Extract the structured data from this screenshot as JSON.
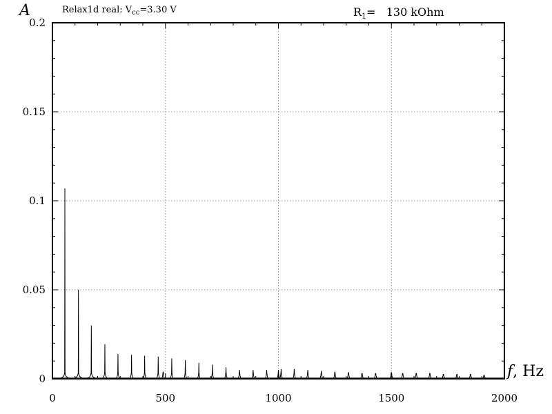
{
  "chart_data": {
    "type": "line",
    "title_left": {
      "prefix": "Relax1d real: V",
      "sub": "cc",
      "suffix": "=3.30 V"
    },
    "title_right": {
      "prefix": "R",
      "sub": "1",
      "suffix": "=   130 kOhm"
    },
    "ylabel": "A",
    "xlabel": {
      "var": "f",
      "unit": ", Hz"
    },
    "xlim": [
      0,
      2000
    ],
    "ylim": [
      0,
      0.2
    ],
    "xticks": [
      0,
      500,
      1000,
      1500,
      2000
    ],
    "yticks": [
      0,
      0.05,
      0.1,
      0.15,
      0.2
    ],
    "xtick_labels": [
      "0",
      "500",
      "1000",
      "1500",
      "2000"
    ],
    "ytick_labels": [
      "0",
      "0.05",
      "0.1",
      "0.15",
      "0.2"
    ],
    "grid": true,
    "peaks": [
      {
        "f": 55,
        "a": 0.107
      },
      {
        "f": 115,
        "a": 0.05
      },
      {
        "f": 172,
        "a": 0.03
      },
      {
        "f": 232,
        "a": 0.0195
      },
      {
        "f": 290,
        "a": 0.014
      },
      {
        "f": 350,
        "a": 0.0135
      },
      {
        "f": 408,
        "a": 0.013
      },
      {
        "f": 468,
        "a": 0.0125
      },
      {
        "f": 490,
        "a": 0.004
      },
      {
        "f": 528,
        "a": 0.0115
      },
      {
        "f": 588,
        "a": 0.0105
      },
      {
        "f": 648,
        "a": 0.009
      },
      {
        "f": 708,
        "a": 0.008
      },
      {
        "f": 768,
        "a": 0.0065
      },
      {
        "f": 828,
        "a": 0.005
      },
      {
        "f": 888,
        "a": 0.005
      },
      {
        "f": 948,
        "a": 0.005
      },
      {
        "f": 1000,
        "a": 0.005
      },
      {
        "f": 1012,
        "a": 0.0055
      },
      {
        "f": 1070,
        "a": 0.0055
      },
      {
        "f": 1130,
        "a": 0.005
      },
      {
        "f": 1190,
        "a": 0.0045
      },
      {
        "f": 1250,
        "a": 0.004
      },
      {
        "f": 1310,
        "a": 0.0035
      },
      {
        "f": 1370,
        "a": 0.003
      },
      {
        "f": 1430,
        "a": 0.003
      },
      {
        "f": 1500,
        "a": 0.0035
      },
      {
        "f": 1550,
        "a": 0.003
      },
      {
        "f": 1610,
        "a": 0.003
      },
      {
        "f": 1670,
        "a": 0.003
      },
      {
        "f": 1730,
        "a": 0.0025
      },
      {
        "f": 1790,
        "a": 0.0025
      },
      {
        "f": 1850,
        "a": 0.0025
      },
      {
        "f": 1910,
        "a": 0.002
      }
    ]
  }
}
